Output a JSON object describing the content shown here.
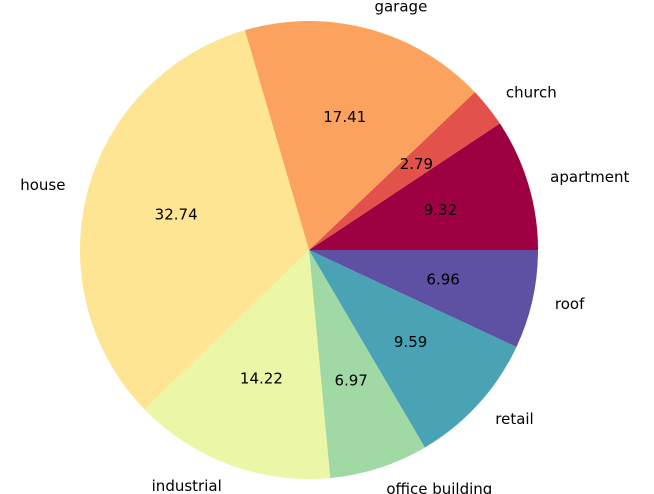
{
  "chart_data": {
    "type": "pie",
    "categories": [
      "apartment",
      "church",
      "garage",
      "house",
      "industrial",
      "office building",
      "retail",
      "roof"
    ],
    "values": [
      9.32,
      2.79,
      17.41,
      32.74,
      14.22,
      6.97,
      9.59,
      6.96
    ],
    "colors": [
      "#9e0142",
      "#e3524a",
      "#fba35e",
      "#fee593",
      "#ebf7a6",
      "#a0d9a3",
      "#4aa3b5",
      "#5e50a2"
    ],
    "start_angle": 0,
    "direction": "counterclockwise"
  }
}
